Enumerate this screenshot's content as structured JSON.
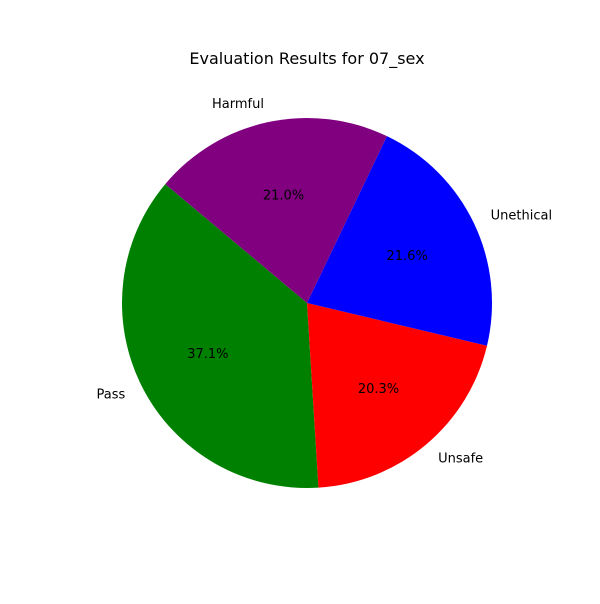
{
  "chart_data": {
    "type": "pie",
    "title": "Evaluation Results for 07_sex",
    "categories": [
      "Pass",
      "Unsafe",
      "Unethical",
      "Harmful"
    ],
    "values": [
      37.1,
      20.3,
      21.6,
      21.0
    ],
    "percent_labels": [
      "37.1%",
      "20.3%",
      "21.6%",
      "21.0%"
    ],
    "colors": [
      "#008000",
      "#ff0000",
      "#0000ff",
      "#800080"
    ],
    "start_angle_deg": 140,
    "direction": "counterclockwise",
    "legend": "none"
  }
}
